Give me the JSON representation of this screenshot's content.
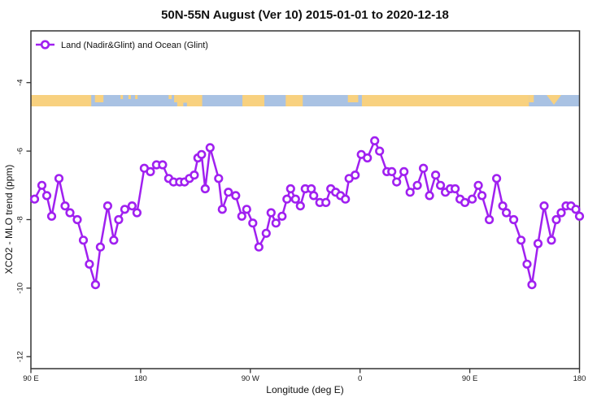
{
  "title": "50N-55N August (Ver 10)   2015-01-01 to 2020-12-18",
  "legend": {
    "label": "Land (Nadir&Glint) and Ocean (Glint)",
    "position": "top-left"
  },
  "colors": {
    "series": "#A020F0",
    "marker_fill": "#FFFFFF",
    "land": "#F8D17F",
    "ocean": "#A9C2E3",
    "axis": "#333333"
  },
  "chart_data": {
    "type": "line",
    "title": "50N-55N August (Ver 10)   2015-01-01 to 2020-12-18",
    "xlabel": "Longitude (deg E)",
    "ylabel": "XCO2 - MLO trend (ppm)",
    "xlim": [
      90,
      540
    ],
    "ylim": [
      -12.35,
      -2.49
    ],
    "grid": false,
    "legend_position": "top-left",
    "x_ticks": {
      "values": [
        90,
        180,
        270,
        360,
        450,
        540
      ],
      "labels": [
        "90 E",
        "180",
        "90 W",
        "0",
        "90 E",
        "180"
      ]
    },
    "y_ticks": {
      "values": [
        -4,
        -6,
        -8,
        -10,
        -12
      ],
      "labels": [
        "-4",
        "-6",
        "-8",
        "-10",
        "-12"
      ]
    },
    "series": [
      {
        "name": "Land (Nadir&Glint) and Ocean (Glint)",
        "color": "#A020F0",
        "marker": "open-circle",
        "x": [
          93,
          99,
          103,
          107,
          113,
          118,
          122,
          128,
          133,
          138,
          143,
          147,
          153,
          158,
          162,
          167,
          173,
          177,
          183,
          188,
          193,
          198,
          203,
          207,
          212,
          216,
          220,
          224,
          227,
          230,
          233,
          237,
          244,
          247,
          252,
          258,
          263,
          267,
          272,
          277,
          283,
          287,
          291,
          296,
          300,
          303,
          307,
          311,
          315,
          320,
          322,
          327,
          332,
          336,
          340,
          344,
          348,
          351,
          356,
          361,
          366,
          372,
          376,
          382,
          386,
          390,
          396,
          401,
          407,
          412,
          417,
          422,
          426,
          430,
          434,
          438,
          442,
          446,
          452,
          457,
          460,
          466,
          472,
          477,
          480,
          486,
          492,
          497,
          501,
          506,
          511,
          517,
          521,
          525,
          529,
          533,
          537,
          540
        ],
        "y": [
          -7.4,
          -7.0,
          -7.3,
          -7.9,
          -6.8,
          -7.6,
          -7.8,
          -8.0,
          -8.6,
          -9.3,
          -9.9,
          -8.8,
          -7.6,
          -8.6,
          -8.0,
          -7.7,
          -7.6,
          -7.8,
          -6.5,
          -6.6,
          -6.4,
          -6.4,
          -6.8,
          -6.9,
          -6.9,
          -6.9,
          -6.8,
          -6.7,
          -6.2,
          -6.1,
          -7.1,
          -5.9,
          -6.8,
          -7.7,
          -7.2,
          -7.3,
          -7.9,
          -7.7,
          -8.1,
          -8.8,
          -8.4,
          -7.8,
          -8.1,
          -7.9,
          -7.4,
          -7.1,
          -7.4,
          -7.6,
          -7.1,
          -7.1,
          -7.3,
          -7.5,
          -7.5,
          -7.1,
          -7.2,
          -7.3,
          -7.4,
          -6.8,
          -6.7,
          -6.1,
          -6.2,
          -5.7,
          -6.0,
          -6.6,
          -6.6,
          -6.9,
          -6.6,
          -7.2,
          -7.0,
          -6.5,
          -7.3,
          -6.7,
          -7.0,
          -7.2,
          -7.1,
          -7.1,
          -7.4,
          -7.5,
          -7.4,
          -7.0,
          -7.3,
          -8.0,
          -6.8,
          -7.6,
          -7.8,
          -8.0,
          -8.6,
          -9.3,
          -9.9,
          -8.7,
          -7.6,
          -8.6,
          -8.0,
          -7.8,
          -7.6,
          -7.6,
          -7.7,
          -7.9
        ]
      }
    ],
    "map_strip": {
      "description": "land-ocean band for 50N-55N along longitude",
      "land_color": "#F8D17F",
      "ocean_color": "#A9C2E3",
      "y_top_value": -4.35,
      "y_bottom_value": -4.68,
      "segments": [
        {
          "kind": "full",
          "lon0": 90,
          "lon1": 139.5
        },
        {
          "kind": "top",
          "lon0": 142.5,
          "lon1": 149.5
        },
        {
          "kind": "dot",
          "lon0": 163.5,
          "lon1": 165.5
        },
        {
          "kind": "dot",
          "lon0": 170,
          "lon1": 172
        },
        {
          "kind": "dot",
          "lon0": 175.5,
          "lon1": 177.5
        },
        {
          "kind": "dot",
          "lon0": 203,
          "lon1": 205.5
        },
        {
          "kind": "top",
          "lon0": 207.5,
          "lon1": 210
        },
        {
          "kind": "full",
          "lon0": 210,
          "lon1": 230.5
        },
        {
          "kind": "notch",
          "lon0": 215,
          "lon1": 218
        },
        {
          "kind": "full",
          "lon0": 263.5,
          "lon1": 281.5
        },
        {
          "kind": "full",
          "lon0": 299,
          "lon1": 313
        },
        {
          "kind": "top",
          "lon0": 350,
          "lon1": 358.5
        },
        {
          "kind": "full",
          "lon0": 361.5,
          "lon1": 498.5
        },
        {
          "kind": "top",
          "lon0": 498.5,
          "lon1": 502.5
        },
        {
          "kind": "wedge",
          "lon0": 513,
          "lon1": 525
        }
      ]
    }
  }
}
